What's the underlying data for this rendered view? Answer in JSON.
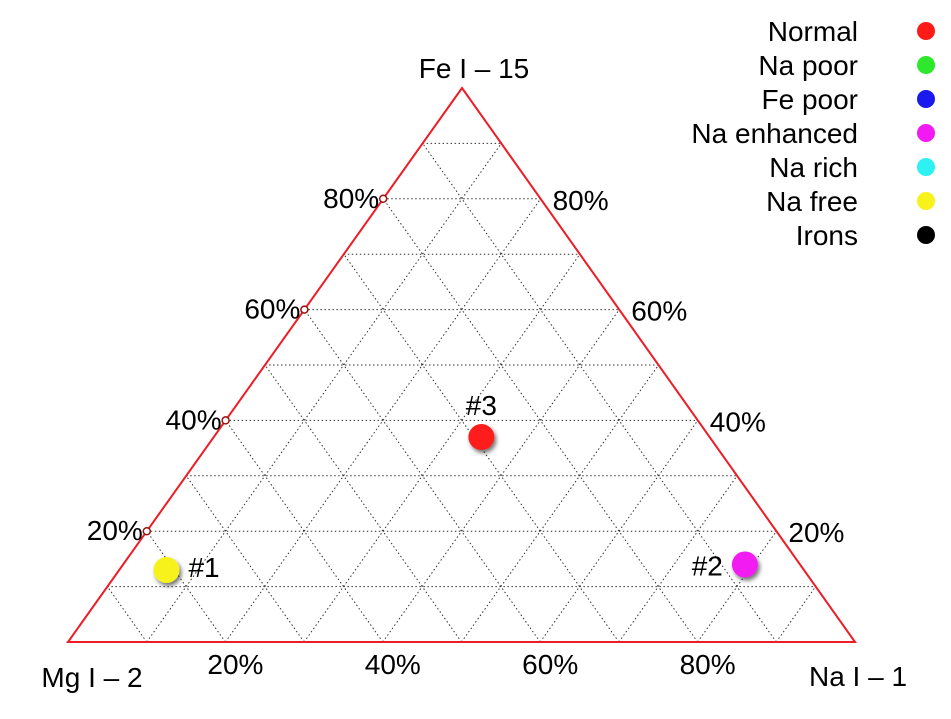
{
  "chart_data": {
    "type": "scatter",
    "subtype": "ternary",
    "axes": {
      "top": "Fe I – 15",
      "left": "Mg I – 2",
      "right": "Na I – 1"
    },
    "tick_labels": [
      "20%",
      "40%",
      "60%",
      "80%"
    ],
    "grid": "dotted, 10% steps",
    "legend_placement": "top-right",
    "legend": [
      {
        "name": "Normal",
        "color": "#ff1a1a"
      },
      {
        "name": "Na poor",
        "color": "#2ee82e"
      },
      {
        "name": "Fe poor",
        "color": "#1a1aee"
      },
      {
        "name": "Na enhanced",
        "color": "#f21af2"
      },
      {
        "name": "Na rich",
        "color": "#2ef2f2"
      },
      {
        "name": "Na free",
        "color": "#f7f21a"
      },
      {
        "name": "Irons",
        "color": "#000000"
      }
    ],
    "points": [
      {
        "label": "#1",
        "group": "Na free",
        "color": "#f7f21a",
        "fe": 0.13,
        "na": 0.06,
        "mg": 0.81
      },
      {
        "label": "#2",
        "group": "Na enhanced",
        "color": "#f21af2",
        "fe": 0.14,
        "na": 0.79,
        "mg": 0.07
      },
      {
        "label": "#3",
        "group": "Normal",
        "color": "#ff1a1a",
        "fe": 0.37,
        "na": 0.34,
        "mg": 0.29
      }
    ]
  }
}
